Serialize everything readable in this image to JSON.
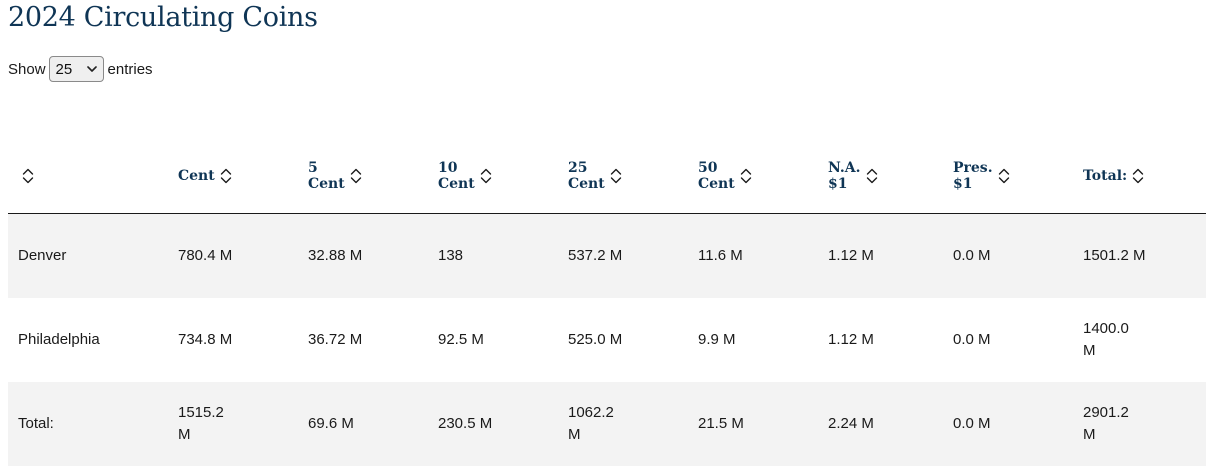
{
  "page_title": "2024 Circulating Coins",
  "length_control": {
    "before": "Show",
    "value": "25",
    "after": "entries"
  },
  "table": {
    "columns": [
      {
        "id": "mint",
        "label_lines": []
      },
      {
        "id": "cent",
        "label_lines": [
          "Cent"
        ]
      },
      {
        "id": "5cent",
        "label_lines": [
          "5",
          "Cent"
        ]
      },
      {
        "id": "10cent",
        "label_lines": [
          "10",
          "Cent"
        ]
      },
      {
        "id": "25cent",
        "label_lines": [
          "25",
          "Cent"
        ]
      },
      {
        "id": "50cent",
        "label_lines": [
          "50",
          "Cent"
        ]
      },
      {
        "id": "na1",
        "label_lines": [
          "N.A.",
          "$1"
        ]
      },
      {
        "id": "pres1",
        "label_lines": [
          "Pres.",
          "$1"
        ]
      },
      {
        "id": "total",
        "label_lines": [
          "Total:"
        ]
      }
    ],
    "rows": [
      {
        "mint": "Denver",
        "cells": [
          "780.4 M",
          "32.88 M",
          "138",
          "537.2 M",
          "11.6 M",
          "1.12 M",
          "0.0 M",
          "1501.2 M"
        ]
      },
      {
        "mint": "Philadelphia",
        "cells": [
          "734.8 M",
          "36.72 M",
          "92.5 M",
          "525.0 M",
          "9.9 M",
          "1.12 M",
          "0.0 M",
          "1400.0 M"
        ]
      },
      {
        "mint": "Total:",
        "cells": [
          "1515.2 M",
          "69.6 M",
          "230.5 M",
          "1062.2 M",
          "21.5 M",
          "2.24 M",
          "0.0 M",
          "2901.2 M"
        ]
      }
    ],
    "wrap_columns": [
      0,
      1,
      3,
      7
    ]
  },
  "colors": {
    "title": "#0f3555",
    "header_text": "#0f3555",
    "stripe": "#f3f3f3",
    "rule": "#1a1a1a"
  }
}
